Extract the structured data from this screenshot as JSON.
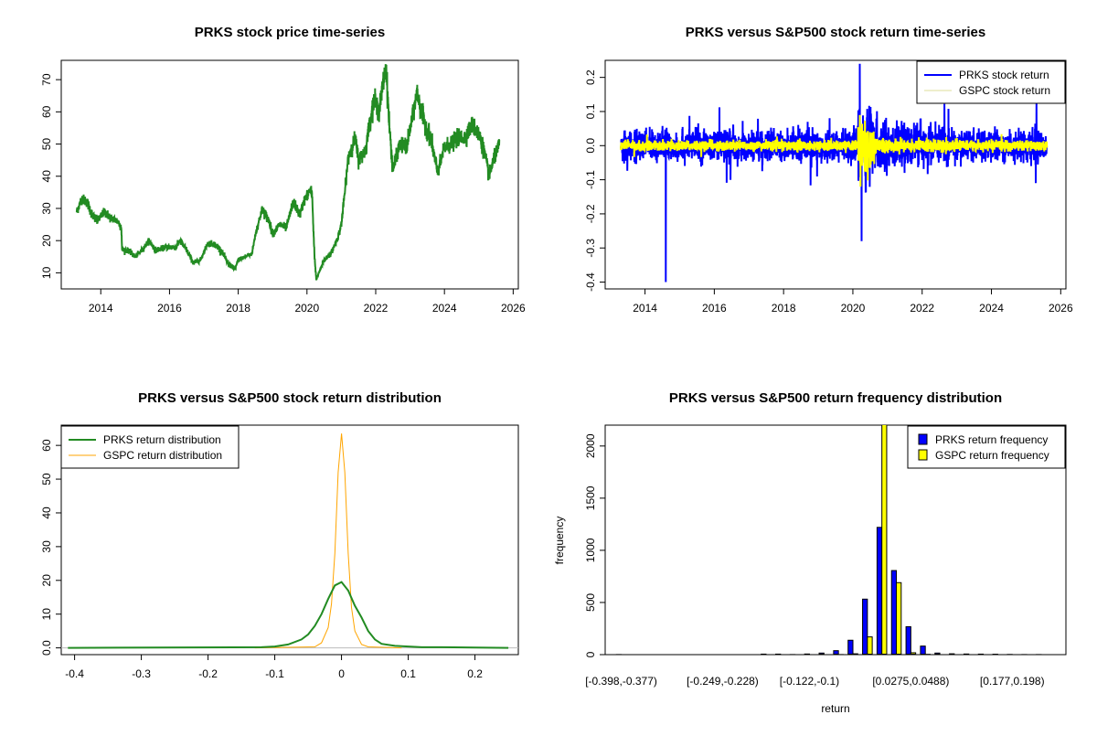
{
  "chart_data": [
    {
      "type": "line",
      "title": "PRKS stock price time-series",
      "xlabel": "",
      "ylabel": "",
      "xlim": [
        2012.85,
        2026.15
      ],
      "ylim": [
        5,
        76
      ],
      "xticks": [
        2014,
        2016,
        2018,
        2020,
        2022,
        2024,
        2026
      ],
      "yticks": [
        10,
        20,
        30,
        40,
        50,
        60,
        70
      ],
      "series": [
        {
          "name": "PRKS",
          "color": "#228B22",
          "x": [
            2013.3,
            2013.45,
            2013.6,
            2013.75,
            2013.9,
            2014.1,
            2014.3,
            2014.5,
            2014.6,
            2014.62,
            2014.8,
            2015.0,
            2015.2,
            2015.4,
            2015.6,
            2015.9,
            2016.2,
            2016.3,
            2016.5,
            2016.7,
            2016.9,
            2017.1,
            2017.3,
            2017.5,
            2017.7,
            2017.9,
            2018.0,
            2018.2,
            2018.4,
            2018.5,
            2018.7,
            2018.9,
            2019.0,
            2019.2,
            2019.4,
            2019.6,
            2019.8,
            2019.9,
            2020.1,
            2020.15,
            2020.22,
            2020.27,
            2020.5,
            2020.7,
            2020.9,
            2021.0,
            2021.1,
            2021.2,
            2021.4,
            2021.5,
            2021.7,
            2021.8,
            2021.95,
            2022.1,
            2022.2,
            2022.3,
            2022.4,
            2022.5,
            2022.7,
            2022.9,
            2023.1,
            2023.2,
            2023.4,
            2023.6,
            2023.8,
            2024.0,
            2024.2,
            2024.4,
            2024.6,
            2024.8,
            2025.0,
            2025.15,
            2025.3,
            2025.4,
            2025.6
          ],
          "y": [
            29,
            33,
            32,
            28,
            26,
            29,
            27,
            26,
            24,
            17,
            17,
            15,
            17,
            20,
            17,
            18,
            18,
            20,
            17,
            13,
            14,
            19,
            19,
            17,
            13,
            11,
            14,
            15,
            16,
            22,
            30,
            26,
            22,
            25,
            24,
            32,
            28,
            32,
            36,
            34,
            15,
            8,
            14,
            16,
            21,
            25,
            35,
            46,
            52,
            45,
            48,
            55,
            64,
            60,
            68,
            74,
            55,
            42,
            50,
            49,
            60,
            66,
            57,
            52,
            41,
            49,
            50,
            52,
            52,
            56,
            53,
            48,
            40,
            44,
            50
          ]
        }
      ]
    },
    {
      "type": "line",
      "title": "PRKS versus S&P500 stock return time-series",
      "xlim": [
        2012.85,
        2026.15
      ],
      "ylim": [
        -0.42,
        0.25
      ],
      "xticks": [
        2014,
        2016,
        2018,
        2020,
        2022,
        2024,
        2026
      ],
      "yticks": [
        -0.4,
        -0.3,
        -0.2,
        -0.1,
        0.0,
        0.1,
        0.2
      ],
      "legend": {
        "position": "top-right",
        "entries": [
          "PRKS stock return",
          "GSPC stock return"
        ]
      },
      "series": [
        {
          "name": "PRKS stock return",
          "color": "#0000FF",
          "notable_points": {
            "x": [
              2014.6,
              2020.2,
              2020.25,
              2025.3,
              2025.28
            ],
            "y": [
              -0.4,
              0.24,
              -0.28,
              0.13,
              -0.11
            ]
          }
        },
        {
          "name": "GSPC stock return",
          "color": "#FFFF00",
          "notable_points": {
            "x": [
              2020.2,
              2020.22
            ],
            "y": [
              0.09,
              -0.12
            ]
          }
        }
      ]
    },
    {
      "type": "line",
      "title": "PRKS versus S&P500 stock return distribution",
      "xlim": [
        -0.42,
        0.265
      ],
      "ylim": [
        -2,
        66
      ],
      "xticks": [
        -0.4,
        -0.3,
        -0.2,
        -0.1,
        0.0,
        0.1,
        0.2
      ],
      "yticks": [
        0,
        10,
        20,
        30,
        40,
        50,
        60
      ],
      "legend": {
        "position": "top-left",
        "entries": [
          "PRKS return distribution",
          "GSPC return distribution"
        ]
      },
      "series": [
        {
          "name": "PRKS return distribution",
          "color": "#228B22",
          "x": [
            -0.41,
            -0.12,
            -0.1,
            -0.08,
            -0.06,
            -0.05,
            -0.04,
            -0.03,
            -0.02,
            -0.01,
            0,
            0.01,
            0.02,
            0.03,
            0.04,
            0.05,
            0.06,
            0.08,
            0.1,
            0.12,
            0.15,
            0.25
          ],
          "y": [
            0,
            0.2,
            0.4,
            1,
            2.5,
            4,
            6.5,
            10,
            14.5,
            18.5,
            19.5,
            17,
            12.5,
            9,
            5,
            2.5,
            1.2,
            0.6,
            0.4,
            0.2,
            0.2,
            0
          ]
        },
        {
          "name": "GSPC return distribution",
          "color": "#FFA500",
          "x": [
            -0.13,
            -0.04,
            -0.03,
            -0.02,
            -0.015,
            -0.01,
            -0.005,
            0,
            0.005,
            0.01,
            0.015,
            0.02,
            0.03,
            0.04,
            0.09
          ],
          "y": [
            0,
            0.3,
            1.5,
            6,
            13,
            28,
            52,
            63.5,
            52,
            28,
            12,
            5,
            1,
            0.3,
            0
          ]
        }
      ]
    },
    {
      "type": "bar",
      "title": "PRKS versus S&P500 return frequency distribution",
      "xlabel": "return",
      "ylabel": "frequency",
      "ylim": [
        0,
        2200
      ],
      "yticks": [
        0,
        500,
        1000,
        1500,
        2000
      ],
      "bin_start": -0.398,
      "bin_width": 0.02125,
      "bin_count": 30,
      "visible_tick_labels": [
        {
          "bin": 0,
          "label": "[-0.398,-0.377)"
        },
        {
          "bin": 7,
          "label": "[-0.249,-0.228)"
        },
        {
          "bin": 13,
          "label": "[-0.122,-0.1)"
        },
        {
          "bin": 20,
          "label": "[0.0275,0.0488)"
        },
        {
          "bin": 27,
          "label": "[0.177,0.198)"
        }
      ],
      "legend": {
        "position": "top-right",
        "entries": [
          "PRKS return frequency",
          "GSPC return frequency"
        ]
      },
      "series": [
        {
          "name": "PRKS return frequency",
          "color": "#0000FF",
          "values": [
            1,
            0,
            0,
            0,
            0,
            0,
            0,
            0,
            0,
            0,
            5,
            5,
            1,
            6,
            15,
            38,
            138,
            532,
            1220,
            806,
            268,
            82,
            15,
            8,
            6,
            5,
            4,
            2,
            1,
            1
          ]
        },
        {
          "name": "GSPC return frequency",
          "color": "#FFFF00",
          "values": [
            0,
            0,
            0,
            0,
            0,
            0,
            0,
            0,
            0,
            0,
            0,
            0,
            0,
            0,
            0,
            1,
            8,
            170,
            2370,
            690,
            18,
            3,
            0,
            0,
            0,
            0,
            0,
            0,
            0,
            0
          ]
        }
      ]
    }
  ]
}
